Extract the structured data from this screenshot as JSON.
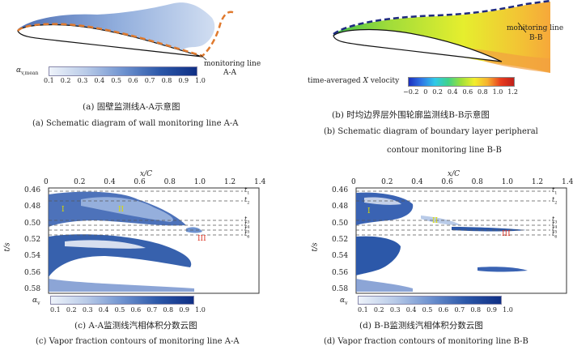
{
  "panel_a": {
    "mon_label1": "monitoring line",
    "mon_label2": "A-A",
    "cbar_label": "α",
    "cbar_sub": "v,mean",
    "cbar_ticks": [
      "0.1",
      "0.2",
      "0.3",
      "0.4",
      "0.5",
      "0.6",
      "0.7",
      "0.8",
      "0.9",
      "1.0"
    ],
    "caption_cn": "(a) 固壁监测线A-A示意图",
    "caption_en": "(a) Schematic diagram of wall monitoring line A-A",
    "colors": {
      "line": "#e07a2e",
      "cloud": "#6a8fcc"
    }
  },
  "panel_b": {
    "mon_label1": "monitoring line",
    "mon_label2": "B-B",
    "cbar_label": "time-averaged",
    "cbar_label_var": "X",
    "cbar_label_end": "velocity",
    "cbar_ticks": [
      "−0.2",
      "0",
      "0.2",
      "0.4",
      "0.6",
      "0.8",
      "1.0",
      "1.2"
    ],
    "caption_cn": "(b) 时均边界层外围轮廓监测线B-B示意图",
    "caption_en1": "(b) Schematic diagram of boundary layer peripheral",
    "caption_en2": "contour monitoring line B-B",
    "colors": {
      "line": "#1f2a80"
    }
  },
  "panel_c": {
    "xaxis_label": "x/C",
    "yaxis_label": "t/s",
    "xticks": [
      "0",
      "0.2",
      "0.4",
      "0.6",
      "0.8",
      "1.0",
      "1.2",
      "1.4"
    ],
    "yticks": [
      "0.46",
      "0.48",
      "0.50",
      "0.52",
      "0.54",
      "0.56",
      "0.58"
    ],
    "tlines": [
      "t",
      "t",
      "t",
      "t",
      "t",
      "t"
    ],
    "tsubs": [
      "1",
      "2",
      "3",
      "4",
      "5",
      "6"
    ],
    "regions": [
      "I",
      "II",
      "III"
    ],
    "cbar_label": "α",
    "cbar_sub": "v",
    "cbar_ticks": [
      "0.1",
      "0.2",
      "0.3",
      "0.4",
      "0.5",
      "0.6",
      "0.7",
      "0.8",
      "0.9",
      "1.0"
    ],
    "caption_cn": "(c) A-A监测线汽相体积分数云图",
    "caption_en": "(c) Vapor fraction contours of monitoring line A-A"
  },
  "panel_d": {
    "xaxis_label": "x/C",
    "yaxis_label": "t/s",
    "xticks": [
      "0",
      "0.2",
      "0.4",
      "0.6",
      "0.8",
      "1.0",
      "1.2",
      "1.4"
    ],
    "yticks": [
      "0.46",
      "0.48",
      "0.50",
      "0.52",
      "0.54",
      "0.56",
      "0.58"
    ],
    "tlines": [
      "t",
      "t",
      "t",
      "t",
      "t",
      "t"
    ],
    "tsubs": [
      "1",
      "2",
      "3",
      "4",
      "5",
      "6"
    ],
    "regions": [
      "I",
      "II",
      "III"
    ],
    "cbar_label": "α",
    "cbar_sub": "v",
    "cbar_ticks": [
      "0.1",
      "0.2",
      "0.3",
      "0.4",
      "0.5",
      "0.6",
      "0.7",
      "0.8",
      "0.9",
      "1.0"
    ],
    "caption_cn": "(d) B-B监测线汽相体积分数云图",
    "caption_en": "(d) Vapor fraction contours of monitoring line B-B"
  }
}
